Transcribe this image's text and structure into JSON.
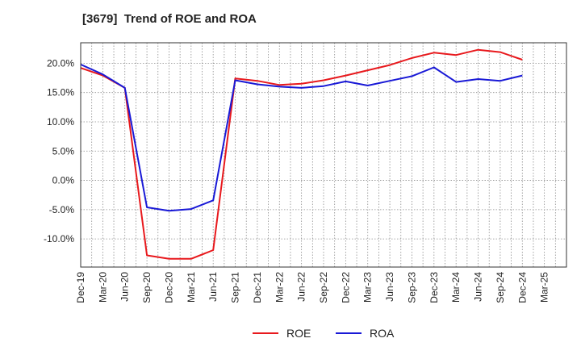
{
  "chart_data": {
    "type": "line",
    "title": "[3679]  Trend of ROE and ROA",
    "xlabel": "",
    "ylabel": "",
    "x": [
      "Dec-19",
      "Mar-20",
      "Jun-20",
      "Sep-20",
      "Dec-20",
      "Mar-21",
      "Jun-21",
      "Sep-21",
      "Dec-21",
      "Mar-22",
      "Jun-22",
      "Sep-22",
      "Dec-22",
      "Mar-23",
      "Jun-23",
      "Sep-23",
      "Dec-23",
      "Mar-24",
      "Jun-24",
      "Sep-24",
      "Dec-24",
      "Mar-25"
    ],
    "yticks": [
      -10,
      -5,
      0,
      5,
      10,
      15,
      20
    ],
    "ytick_labels": [
      "-10.0%",
      "-5.0%",
      "0.0%",
      "5.0%",
      "10.0%",
      "15.0%",
      "20.0%"
    ],
    "ylim": [
      -14.8,
      23.5
    ],
    "grid": true,
    "legend_position": "bottom-center",
    "series": [
      {
        "name": "ROE",
        "color": "#e8191d",
        "values": [
          19.2,
          17.9,
          15.8,
          -12.8,
          -13.4,
          -13.4,
          -11.9,
          17.4,
          17.0,
          16.3,
          16.5,
          17.1,
          17.9,
          18.8,
          19.7,
          20.9,
          21.8,
          21.4,
          22.3,
          21.9,
          20.6,
          null
        ]
      },
      {
        "name": "ROA",
        "color": "#1919d6",
        "values": [
          19.8,
          18.1,
          15.8,
          -4.6,
          -5.2,
          -4.9,
          -3.4,
          17.1,
          16.4,
          16.0,
          15.8,
          16.1,
          16.9,
          16.2,
          17.0,
          17.8,
          19.3,
          16.8,
          17.3,
          17.0,
          17.9,
          null
        ]
      }
    ]
  }
}
